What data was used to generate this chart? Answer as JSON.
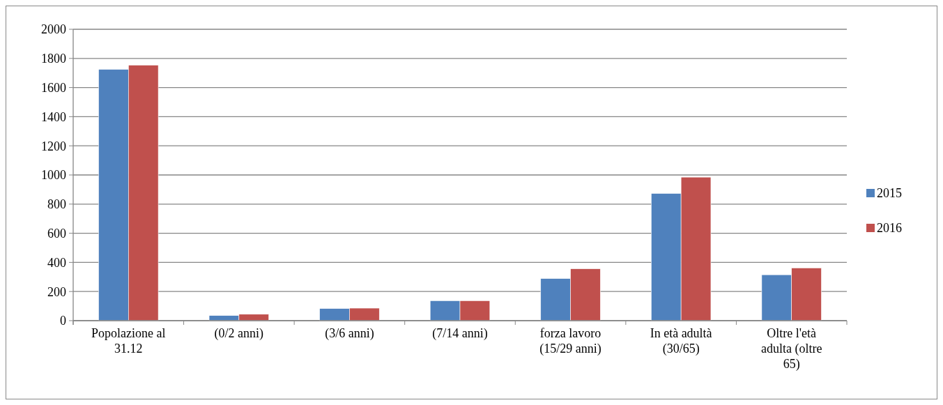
{
  "chart_data": {
    "type": "bar",
    "categories": [
      "Popolazione al 31.12",
      "(0/2 anni)",
      "(3/6 anni)",
      "(7/14 anni)",
      "forza lavoro (15/29 anni)",
      "In età adultà (30/65)",
      "Oltre l'età adulta (oltre 65)"
    ],
    "series": [
      {
        "name": "2015",
        "color": "#4f81bd",
        "values": [
          1725,
          35,
          83,
          137,
          289,
          873,
          315
        ]
      },
      {
        "name": "2016",
        "color": "#c0504d",
        "values": [
          1754,
          44,
          86,
          137,
          356,
          985,
          362
        ]
      }
    ],
    "ylim": [
      0,
      2000
    ],
    "yticks": [
      0,
      200,
      400,
      600,
      800,
      1000,
      1200,
      1400,
      1600,
      1800,
      2000
    ],
    "grid": "y",
    "legend": "right"
  }
}
